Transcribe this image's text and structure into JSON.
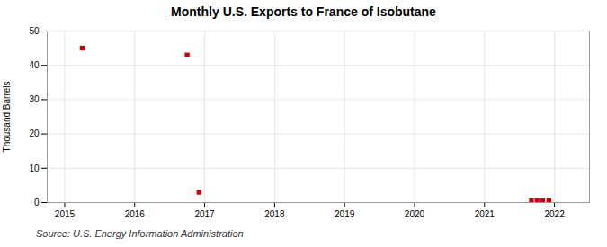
{
  "chart_data": {
    "type": "scatter",
    "title": "Monthly U.S. Exports to France of Isobutane",
    "ylabel": "Thousand Barrels",
    "source": "Source: U.S. Energy Information Administration",
    "x": [
      2015.25,
      2016.75,
      2016.92,
      2021.67,
      2021.75,
      2021.83,
      2021.92
    ],
    "values": [
      45,
      43,
      3,
      0.5,
      0.5,
      0.5,
      0.5
    ],
    "color": "#cc0000",
    "marker": "square",
    "xlim": [
      2014.75,
      2022.5
    ],
    "ylim": [
      0,
      50
    ],
    "xticks": [
      2015,
      2016,
      2017,
      2018,
      2019,
      2020,
      2021,
      2022
    ],
    "yticks": [
      0,
      10,
      20,
      30,
      40,
      50
    ],
    "grid": true
  }
}
